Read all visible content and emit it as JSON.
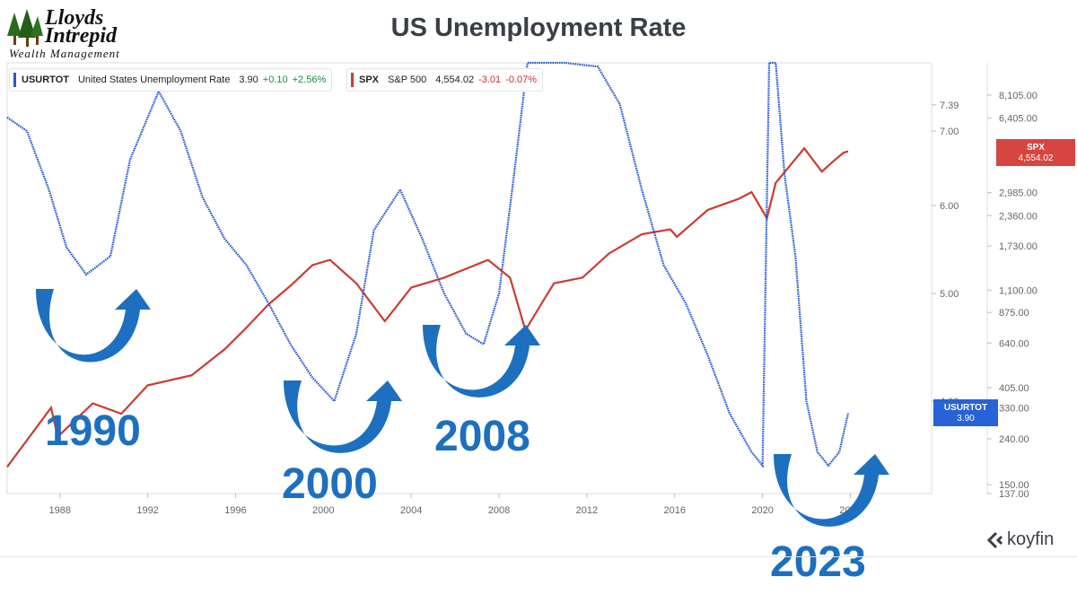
{
  "logo": {
    "line1": "Lloyds",
    "line2": "Intrepid",
    "line3": "Wealth Management"
  },
  "title": "US Unemployment Rate",
  "legend": {
    "unemp": {
      "ticker": "USURTOT",
      "name": "United States Unemployment Rate",
      "value": "3.90",
      "change": "+0.10",
      "pct": "+2.56%",
      "color": "#2457d3"
    },
    "spx": {
      "ticker": "SPX",
      "name": "S&P 500",
      "value": "4,554.02",
      "change": "-3.01",
      "pct": "-0.07%",
      "color": "#cc3b31"
    }
  },
  "badges": {
    "spx": {
      "line1": "SPX",
      "line2": "4,554.02"
    },
    "unemp": {
      "line1": "USURTOT",
      "line2": "3.90"
    }
  },
  "annotations": [
    "1990",
    "2000",
    "2008",
    "2023"
  ],
  "brand": "koyfin",
  "chart_data": {
    "type": "line",
    "title": "US Unemployment Rate",
    "xlim": [
      1985.6,
      2027.7
    ],
    "x_ticks": [
      "1988",
      "1992",
      "1996",
      "2000",
      "2004",
      "2008",
      "2012",
      "2016",
      "2020",
      "2024"
    ],
    "y_left": {
      "label": "",
      "ticks": [
        "7.39",
        "7.00",
        "6.00",
        "5.00",
        "4.00"
      ],
      "scale": "log"
    },
    "y_right": {
      "label": "",
      "ticks": [
        "8,105.00",
        "6,405.00",
        "2,985.00",
        "2,360.00",
        "1,730.00",
        "1,100.00",
        "875.00",
        "640.00",
        "405.00",
        "330.00",
        "240.00",
        "150.00",
        "137.00"
      ],
      "scale": "log"
    },
    "series": [
      {
        "name": "United States Unemployment Rate",
        "axis": "left",
        "color": "#2457d3",
        "points": [
          [
            1985.6,
            7.2
          ],
          [
            1986.5,
            7.0
          ],
          [
            1987.5,
            6.2
          ],
          [
            1988.3,
            5.5
          ],
          [
            1989.2,
            5.2
          ],
          [
            1990.3,
            5.4
          ],
          [
            1991.2,
            6.6
          ],
          [
            1992.5,
            7.6
          ],
          [
            1993.5,
            7.0
          ],
          [
            1994.5,
            6.1
          ],
          [
            1995.5,
            5.6
          ],
          [
            1996.5,
            5.3
          ],
          [
            1997.5,
            4.9
          ],
          [
            1998.5,
            4.5
          ],
          [
            1999.5,
            4.2
          ],
          [
            2000.5,
            4.0
          ],
          [
            2001.5,
            4.6
          ],
          [
            2002.3,
            5.7
          ],
          [
            2003.5,
            6.2
          ],
          [
            2004.5,
            5.6
          ],
          [
            2005.5,
            5.0
          ],
          [
            2006.5,
            4.6
          ],
          [
            2007.3,
            4.5
          ],
          [
            2008.0,
            5.0
          ],
          [
            2008.6,
            6.2
          ],
          [
            2009.3,
            8.7
          ],
          [
            2009.8,
            10.0
          ],
          [
            2011.0,
            9.1
          ],
          [
            2012.5,
            8.0
          ],
          [
            2013.5,
            7.4
          ],
          [
            2014.5,
            6.2
          ],
          [
            2015.5,
            5.3
          ],
          [
            2016.5,
            4.9
          ],
          [
            2017.5,
            4.4
          ],
          [
            2018.5,
            3.9
          ],
          [
            2019.5,
            3.6
          ],
          [
            2020.0,
            3.5
          ],
          [
            2020.3,
            14.7
          ],
          [
            2020.6,
            8.4
          ],
          [
            2021.0,
            6.4
          ],
          [
            2021.5,
            5.4
          ],
          [
            2022.0,
            4.0
          ],
          [
            2022.5,
            3.6
          ],
          [
            2023.0,
            3.5
          ],
          [
            2023.5,
            3.6
          ],
          [
            2023.9,
            3.9
          ]
        ]
      },
      {
        "name": "S&P 500",
        "axis": "right",
        "color": "#cc3b31",
        "points": [
          [
            1985.6,
            180
          ],
          [
            1987.6,
            330
          ],
          [
            1987.9,
            245
          ],
          [
            1989.5,
            345
          ],
          [
            1990.8,
            310
          ],
          [
            1992,
            415
          ],
          [
            1994,
            460
          ],
          [
            1995.5,
            600
          ],
          [
            1996.5,
            750
          ],
          [
            1997.5,
            950
          ],
          [
            1998.5,
            1150
          ],
          [
            1999.5,
            1420
          ],
          [
            2000.3,
            1500
          ],
          [
            2001.5,
            1180
          ],
          [
            2002.8,
            800
          ],
          [
            2004,
            1130
          ],
          [
            2005.5,
            1250
          ],
          [
            2007.5,
            1500
          ],
          [
            2008.5,
            1250
          ],
          [
            2009.2,
            730
          ],
          [
            2010.5,
            1180
          ],
          [
            2011.8,
            1250
          ],
          [
            2013,
            1600
          ],
          [
            2014.5,
            1950
          ],
          [
            2015.8,
            2050
          ],
          [
            2016.1,
            1900
          ],
          [
            2017.5,
            2500
          ],
          [
            2018.9,
            2800
          ],
          [
            2019.5,
            3000
          ],
          [
            2020.2,
            2300
          ],
          [
            2020.6,
            3300
          ],
          [
            2021.9,
            4700
          ],
          [
            2022.7,
            3700
          ],
          [
            2023.2,
            4100
          ],
          [
            2023.7,
            4500
          ],
          [
            2023.9,
            4554
          ]
        ]
      }
    ]
  }
}
